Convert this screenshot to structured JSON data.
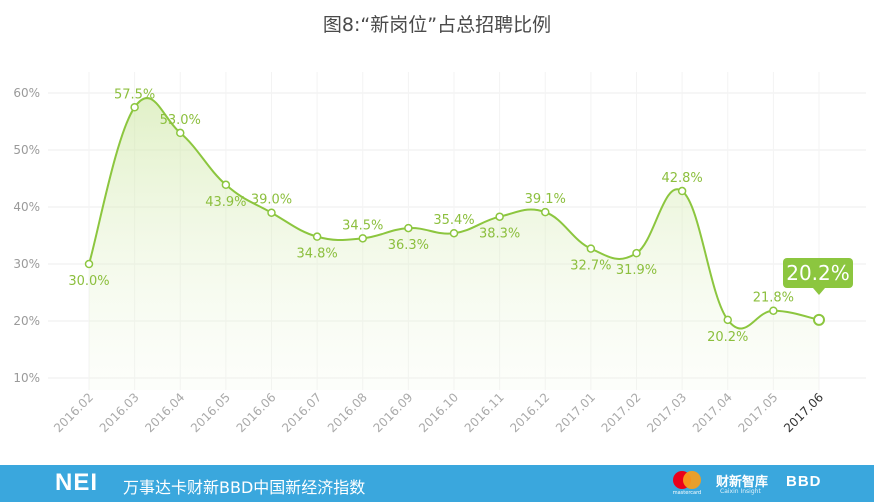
{
  "title": "图8:“新岗位”占总招聘比例",
  "chart_data": {
    "type": "area",
    "categories": [
      "2016.02",
      "2016.03",
      "2016.04",
      "2016.05",
      "2016.06",
      "2016.07",
      "2016.08",
      "2016.09",
      "2016.10",
      "2016.11",
      "2016.12",
      "2017.01",
      "2017.02",
      "2017.03",
      "2017.04",
      "2017.05",
      "2017.06"
    ],
    "values": [
      30.0,
      57.5,
      53.0,
      43.9,
      39.0,
      34.8,
      34.5,
      36.3,
      35.4,
      38.3,
      39.1,
      32.7,
      31.9,
      42.8,
      20.2,
      21.8,
      20.2
    ],
    "labels": [
      "30.0%",
      "57.5%",
      "53.0%",
      "43.9%",
      "39.0%",
      "34.8%",
      "34.5%",
      "36.3%",
      "35.4%",
      "38.3%",
      "39.1%",
      "32.7%",
      "31.9%",
      "42.8%",
      "20.2%",
      "21.8%",
      "20.2%"
    ],
    "yticks": [
      "10%",
      "20%",
      "30%",
      "40%",
      "50%",
      "60%"
    ],
    "ylim": [
      10,
      60
    ],
    "grid": true,
    "highlight_index": 16,
    "colors": {
      "line": "#8cc63f",
      "label": "#8cbf3e",
      "callout": "#8cc63f",
      "fill": "#cfe7a6"
    }
  },
  "footer": {
    "logo": "NEI",
    "tagline": "万事达卡财新BBD中国新经济指数",
    "mastercard_word": "mastercard",
    "caixin": "财新智库",
    "caixin_sub": "Caixin Insight",
    "bbd": "BBD"
  }
}
